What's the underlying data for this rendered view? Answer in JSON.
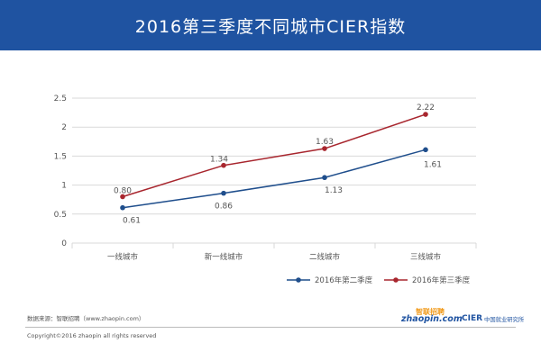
{
  "header": {
    "title": "2016第三季度不同城市CIER指数",
    "background": "#1f53a1"
  },
  "chart_data": {
    "type": "line",
    "title": "",
    "xlabel": "",
    "ylabel": "",
    "categories": [
      "一线城市",
      "新一线城市",
      "二线城市",
      "三线城市"
    ],
    "ylim": [
      0,
      2.5
    ],
    "yticks": [
      "0",
      "0.5",
      "1",
      "1.5",
      "2",
      "2.5"
    ],
    "grid": true,
    "legend_position": "bottom-right",
    "series": [
      {
        "name": "2016年第二季度",
        "values": [
          0.61,
          0.86,
          1.13,
          1.61
        ],
        "labels": [
          "0.61",
          "0.86",
          "1.13",
          "1.61"
        ],
        "color": "#1f4e8c"
      },
      {
        "name": "2016年第三季度",
        "values": [
          0.8,
          1.34,
          1.63,
          2.22
        ],
        "labels": [
          "0.80",
          "1.34",
          "1.63",
          "2.22"
        ],
        "color": "#a8262e"
      }
    ]
  },
  "footer": {
    "source": "数据来源：智联招聘（www.zhaopin.com）",
    "copyright": "Copyright©2016 zhaopin all rights reserved",
    "logo_zhaopin_cn": "智联招聘",
    "logo_zhaopin_en": "zhaopin.com",
    "logo_cier_en": "CIER",
    "logo_cier_cn": "中国就业研究所"
  }
}
